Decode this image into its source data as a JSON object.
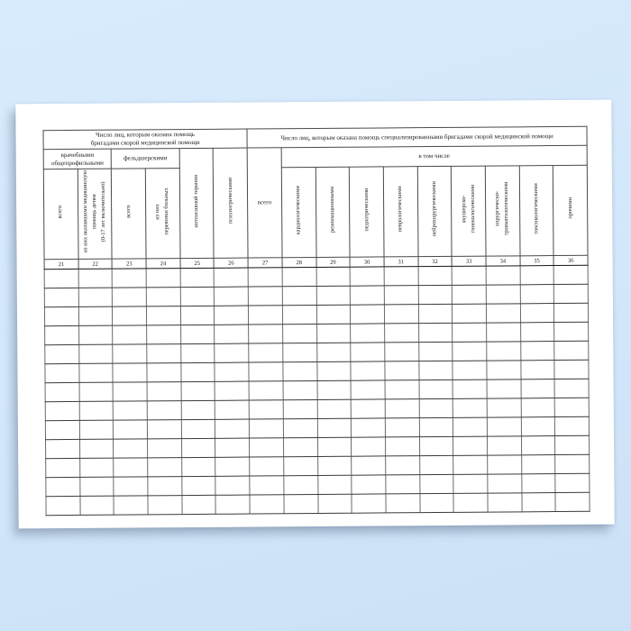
{
  "colors": {
    "background_blue": "#d3e7fb",
    "paper_white": "#ffffff",
    "grid_line": "#3a3a3a",
    "text": "#1b1b1b"
  },
  "table": {
    "header_left_group": "Число лиц, которым оказана помощь\nбригадами скорой медицинской помощи",
    "header_right_group": "Число лиц, которым оказана помощь специализированными бригадами скорой медицинской помощи",
    "subgroup_doctor": "врачебными\nобщепрофильными",
    "subgroup_feldsher": "фельдшерскими",
    "subgroup_including": "в том числе",
    "columns": [
      {
        "num": "21",
        "label": "всего"
      },
      {
        "num": "22",
        "label": "из них оказавшими медицинскую\nпомощь детям\n(0-17 лет включительно)"
      },
      {
        "num": "23",
        "label": "всего"
      },
      {
        "num": "24",
        "label": "из них\nперевозки больных"
      },
      {
        "num": "25",
        "label": "интенсивной терапии"
      },
      {
        "num": "26",
        "label": "психиатрическими"
      },
      {
        "num": "27",
        "label": "всего"
      },
      {
        "num": "28",
        "label": "кардиологическими"
      },
      {
        "num": "29",
        "label": "реанимационными"
      },
      {
        "num": "30",
        "label": "педиатрическими"
      },
      {
        "num": "31",
        "label": "неврологическими"
      },
      {
        "num": "32",
        "label": "нейрохирургическими"
      },
      {
        "num": "33",
        "label": "акушерско-\nгинекологическими"
      },
      {
        "num": "34",
        "label": "хирургическо-\nтравматологическими"
      },
      {
        "num": "35",
        "label": "токсикологическими"
      },
      {
        "num": "36",
        "label": "прочими"
      }
    ],
    "empty_row_count": 13
  }
}
